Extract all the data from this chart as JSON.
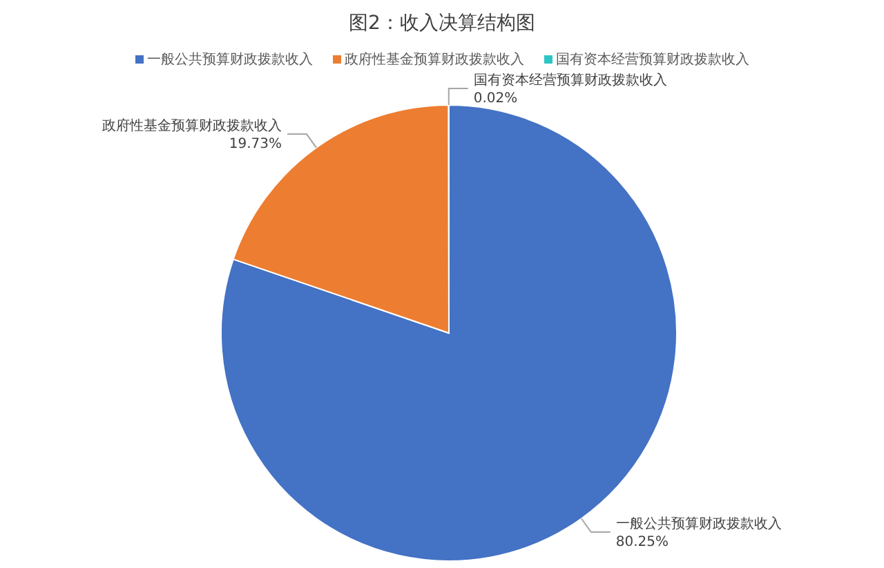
{
  "chart_data": {
    "type": "pie",
    "title": "图2：收入决算结构图",
    "categories": [
      "一般公共预算财政拨款收入",
      "政府性基金预算财政拨款收入",
      "国有资本经营预算财政拨款收入"
    ],
    "values": [
      80.25,
      19.73,
      0.02
    ],
    "colors": [
      "#4472c4",
      "#ed7d31",
      "#2ec5c5"
    ],
    "value_labels": [
      "80.25%",
      "19.73%",
      "0.02%"
    ],
    "legend": "top"
  }
}
